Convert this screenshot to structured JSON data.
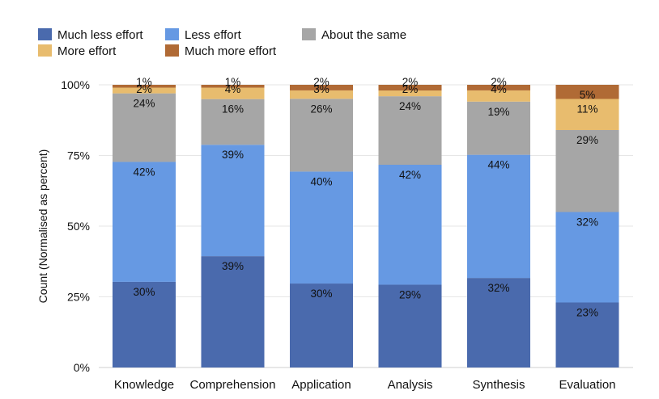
{
  "chart_data": {
    "type": "bar",
    "stacked": true,
    "normalized": true,
    "title": "",
    "xlabel": "",
    "ylabel": "Count (Normalised as percent)",
    "ylim": [
      0,
      100
    ],
    "yticks": [
      "0%",
      "25%",
      "50%",
      "75%",
      "100%"
    ],
    "categories": [
      "Knowledge",
      "Comprehension",
      "Application",
      "Analysis",
      "Synthesis",
      "Evaluation"
    ],
    "legend_position": "top-left",
    "grid": true,
    "series": [
      {
        "name": "Much less effort",
        "color": "#4a6aad",
        "values": [
          30,
          39,
          30,
          29,
          32,
          23
        ]
      },
      {
        "name": "Less effort",
        "color": "#6699e3",
        "values": [
          42,
          39,
          40,
          42,
          44,
          32
        ]
      },
      {
        "name": "About the same",
        "color": "#a6a6a6",
        "values": [
          24,
          16,
          26,
          24,
          19,
          29
        ]
      },
      {
        "name": "More effort",
        "color": "#e8bc6e",
        "values": [
          2,
          4,
          3,
          2,
          4,
          11
        ]
      },
      {
        "name": "Much more effort",
        "color": "#b06a35",
        "values": [
          1,
          1,
          2,
          2,
          2,
          5
        ]
      }
    ],
    "data_labels": [
      [
        "30%",
        "42%",
        "24%",
        "2%",
        "1%"
      ],
      [
        "39%",
        "39%",
        "16%",
        "4%",
        "1%"
      ],
      [
        "30%",
        "40%",
        "26%",
        "3%",
        "2%"
      ],
      [
        "29%",
        "42%",
        "24%",
        "2%",
        "2%"
      ],
      [
        "32%",
        "44%",
        "19%",
        "4%",
        "2%"
      ],
      [
        "23%",
        "32%",
        "29%",
        "11%",
        "5%"
      ]
    ]
  }
}
